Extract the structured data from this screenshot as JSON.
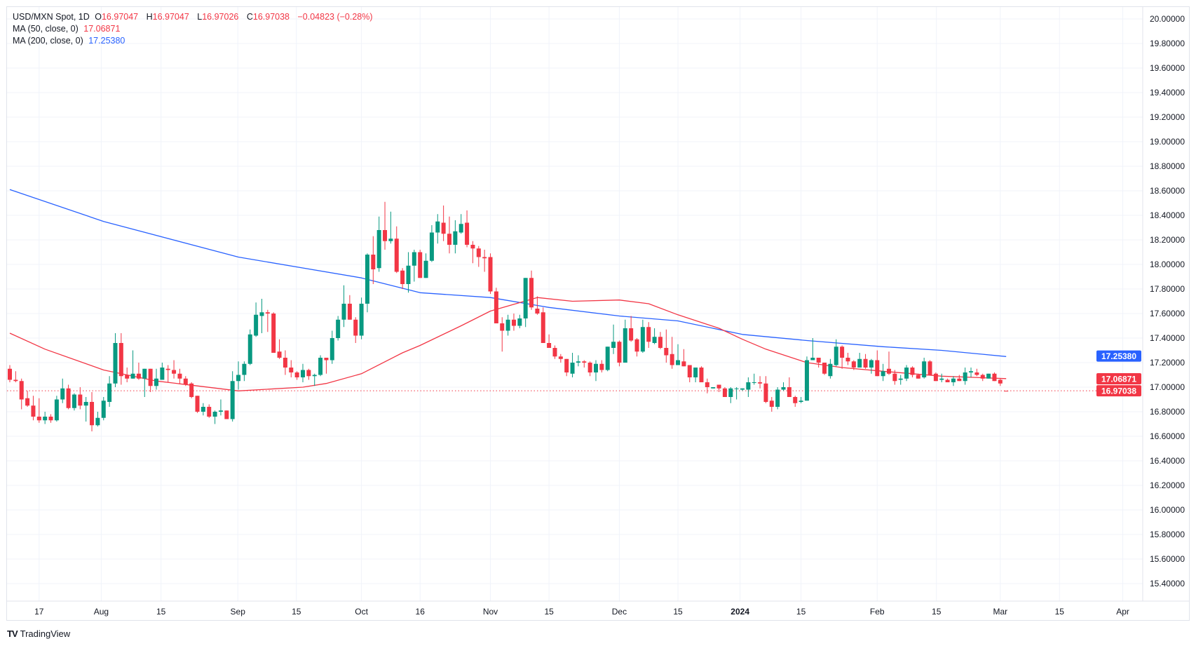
{
  "legend": {
    "symbol": "USD/MXN Spot, 1D",
    "o_label": "O",
    "o_value": "16.97047",
    "h_label": "H",
    "h_value": "16.97047",
    "l_label": "L",
    "l_value": "16.97026",
    "c_label": "C",
    "c_value": "16.97038",
    "change": "−0.04823 (−0.28%)",
    "ma50_label": "MA (50, close, 0)",
    "ma50_value": "17.06871",
    "ma200_label": "MA (200, close, 0)",
    "ma200_value": "17.25380"
  },
  "price_tags": {
    "ma200": "17.25380",
    "ma50": "17.06871",
    "close": "16.97038"
  },
  "brand": {
    "logo": "TV",
    "name": "TradingView"
  },
  "colors": {
    "up": "#089981",
    "down": "#f23645",
    "ma50": "#f23645",
    "ma200": "#2962ff",
    "grid": "#f0f3fa"
  },
  "chart_data": {
    "type": "candlestick",
    "title": "USD/MXN Spot, 1D",
    "ylim": [
      15.3,
      20.08
    ],
    "y_ticks": [
      "15.40000",
      "15.60000",
      "15.80000",
      "16.00000",
      "16.20000",
      "16.40000",
      "16.60000",
      "16.80000",
      "17.00000",
      "17.20000",
      "17.40000",
      "17.60000",
      "17.80000",
      "18.00000",
      "18.20000",
      "18.40000",
      "18.60000",
      "18.80000",
      "19.00000",
      "19.20000",
      "19.40000",
      "19.60000",
      "19.80000",
      "20.00000"
    ],
    "x_ticks": [
      {
        "label": "17",
        "bar": 6
      },
      {
        "label": "Aug",
        "bar": 16.6
      },
      {
        "label": "15",
        "bar": 26.8
      },
      {
        "label": "Sep",
        "bar": 39.9
      },
      {
        "label": "15",
        "bar": 49.9
      },
      {
        "label": "Oct",
        "bar": 61
      },
      {
        "label": "16",
        "bar": 71
      },
      {
        "label": "Nov",
        "bar": 83
      },
      {
        "label": "15",
        "bar": 93
      },
      {
        "label": "Dec",
        "bar": 105
      },
      {
        "label": "15",
        "bar": 115
      },
      {
        "label": "2024",
        "bar": 125.6,
        "bold": true
      },
      {
        "label": "15",
        "bar": 136
      },
      {
        "label": "Feb",
        "bar": 149
      },
      {
        "label": "15",
        "bar": 159.1
      },
      {
        "label": "Mar",
        "bar": 170
      },
      {
        "label": "15",
        "bar": 180.1
      },
      {
        "label": "Apr",
        "bar": 190.9
      }
    ],
    "last_close": 16.97038,
    "ma200": {
      "value": 17.2538,
      "points": [
        [
          1,
          18.61
        ],
        [
          17,
          18.35
        ],
        [
          40,
          18.06
        ],
        [
          61,
          17.89
        ],
        [
          71,
          17.77
        ],
        [
          83,
          17.73
        ],
        [
          93,
          17.65
        ],
        [
          105,
          17.58
        ],
        [
          115,
          17.54
        ],
        [
          126,
          17.43
        ],
        [
          137,
          17.38
        ],
        [
          150,
          17.33
        ],
        [
          160,
          17.3
        ],
        [
          171,
          17.25
        ]
      ]
    },
    "ma50": {
      "value": 17.06871,
      "points": [
        [
          1,
          17.44
        ],
        [
          7,
          17.31
        ],
        [
          17,
          17.14
        ],
        [
          26,
          17.05
        ],
        [
          33,
          17.01
        ],
        [
          40,
          16.97
        ],
        [
          51,
          17.0
        ],
        [
          55,
          17.03
        ],
        [
          61,
          17.11
        ],
        [
          68,
          17.28
        ],
        [
          71,
          17.34
        ],
        [
          78,
          17.5
        ],
        [
          83,
          17.62
        ],
        [
          91,
          17.73
        ],
        [
          97,
          17.7
        ],
        [
          105,
          17.71
        ],
        [
          110,
          17.68
        ],
        [
          115,
          17.59
        ],
        [
          122,
          17.48
        ],
        [
          126,
          17.39
        ],
        [
          130,
          17.31
        ],
        [
          137,
          17.2
        ],
        [
          143,
          17.16
        ],
        [
          150,
          17.13
        ],
        [
          160,
          17.09
        ],
        [
          171,
          17.07
        ]
      ]
    },
    "ohlc": [
      [
        17.15,
        17.18,
        17.04,
        17.06
      ],
      [
        17.06,
        17.13,
        17.04,
        17.05
      ],
      [
        17.05,
        17.07,
        16.82,
        16.9
      ],
      [
        16.91,
        16.97,
        16.84,
        16.85
      ],
      [
        16.85,
        16.93,
        16.73,
        16.76
      ],
      [
        16.76,
        16.91,
        16.71,
        16.73
      ],
      [
        16.73,
        16.8,
        16.7,
        16.76
      ],
      [
        16.76,
        16.78,
        16.71,
        16.73
      ],
      [
        16.73,
        16.93,
        16.72,
        16.9
      ],
      [
        16.9,
        17.07,
        16.87,
        16.99
      ],
      [
        16.99,
        17.02,
        16.82,
        16.83
      ],
      [
        16.83,
        16.95,
        16.81,
        16.94
      ],
      [
        16.94,
        17.0,
        16.82,
        16.85
      ],
      [
        16.85,
        16.92,
        16.72,
        16.88
      ],
      [
        16.88,
        16.96,
        16.64,
        16.69
      ],
      [
        16.69,
        16.8,
        16.68,
        16.75
      ],
      [
        16.75,
        16.92,
        16.73,
        16.89
      ],
      [
        16.88,
        17.09,
        16.84,
        17.03
      ],
      [
        17.03,
        17.44,
        17.0,
        17.36
      ],
      [
        17.36,
        17.44,
        17.02,
        17.09
      ],
      [
        17.1,
        17.16,
        17.04,
        17.07
      ],
      [
        17.07,
        17.3,
        17.07,
        17.11
      ],
      [
        17.11,
        17.2,
        17.06,
        17.07
      ],
      [
        17.07,
        17.15,
        16.92,
        17.15
      ],
      [
        17.15,
        17.15,
        16.96,
        17.01
      ],
      [
        17.01,
        17.15,
        16.98,
        17.07
      ],
      [
        17.06,
        17.2,
        17.06,
        17.16
      ],
      [
        17.15,
        17.18,
        17.04,
        17.14
      ],
      [
        17.14,
        17.22,
        17.07,
        17.11
      ],
      [
        17.11,
        17.15,
        17.03,
        17.07
      ],
      [
        17.07,
        17.09,
        17.01,
        17.02
      ],
      [
        17.03,
        17.04,
        16.91,
        16.92
      ],
      [
        16.93,
        16.93,
        16.79,
        16.8
      ],
      [
        16.8,
        16.87,
        16.77,
        16.84
      ],
      [
        16.84,
        16.86,
        16.75,
        16.76
      ],
      [
        16.76,
        16.81,
        16.7,
        16.8
      ],
      [
        16.8,
        16.9,
        16.77,
        16.81
      ],
      [
        16.81,
        16.81,
        16.74,
        16.74
      ],
      [
        16.74,
        17.13,
        16.72,
        17.05
      ],
      [
        17.05,
        17.21,
        16.98,
        17.1
      ],
      [
        17.1,
        17.21,
        17.05,
        17.19
      ],
      [
        17.19,
        17.47,
        17.18,
        17.43
      ],
      [
        17.42,
        17.69,
        17.41,
        17.59
      ],
      [
        17.58,
        17.72,
        17.44,
        17.61
      ],
      [
        17.61,
        17.63,
        17.45,
        17.6
      ],
      [
        17.6,
        17.61,
        17.28,
        17.28
      ],
      [
        17.29,
        17.39,
        17.23,
        17.24
      ],
      [
        17.24,
        17.3,
        17.1,
        17.16
      ],
      [
        17.16,
        17.22,
        17.08,
        17.12
      ],
      [
        17.12,
        17.13,
        17.06,
        17.08
      ],
      [
        17.08,
        17.19,
        17.04,
        17.14
      ],
      [
        17.14,
        17.15,
        17.06,
        17.09
      ],
      [
        17.09,
        17.11,
        17.01,
        17.1
      ],
      [
        17.1,
        17.26,
        17.09,
        17.24
      ],
      [
        17.24,
        17.24,
        17.11,
        17.22
      ],
      [
        17.22,
        17.46,
        17.19,
        17.4
      ],
      [
        17.4,
        17.58,
        17.38,
        17.55
      ],
      [
        17.55,
        17.83,
        17.49,
        17.68
      ],
      [
        17.68,
        17.75,
        17.55,
        17.55
      ],
      [
        17.55,
        17.57,
        17.36,
        17.42
      ],
      [
        17.42,
        17.73,
        17.39,
        17.68
      ],
      [
        17.68,
        18.09,
        17.61,
        18.08
      ],
      [
        18.08,
        18.23,
        17.84,
        17.96
      ],
      [
        17.97,
        18.39,
        17.94,
        18.28
      ],
      [
        18.28,
        18.51,
        18.12,
        18.19
      ],
      [
        18.19,
        18.43,
        18.17,
        18.21
      ],
      [
        18.21,
        18.31,
        17.93,
        17.94
      ],
      [
        17.95,
        17.97,
        17.8,
        17.84
      ],
      [
        17.84,
        18.1,
        17.77,
        17.99
      ],
      [
        17.99,
        18.12,
        17.86,
        18.1
      ],
      [
        18.1,
        18.12,
        17.89,
        17.89
      ],
      [
        17.89,
        18.09,
        17.89,
        18.03
      ],
      [
        18.03,
        18.32,
        18.02,
        18.26
      ],
      [
        18.26,
        18.41,
        18.17,
        18.35
      ],
      [
        18.34,
        18.48,
        18.19,
        18.25
      ],
      [
        18.25,
        18.39,
        18.09,
        18.16
      ],
      [
        18.16,
        18.36,
        18.09,
        18.27
      ],
      [
        18.26,
        18.41,
        18.25,
        18.33
      ],
      [
        18.34,
        18.44,
        18.14,
        18.16
      ],
      [
        18.16,
        18.19,
        18.01,
        18.13
      ],
      [
        18.13,
        18.15,
        17.98,
        18.06
      ],
      [
        18.06,
        18.12,
        17.94,
        18.05
      ],
      [
        18.06,
        18.09,
        17.76,
        17.78
      ],
      [
        17.78,
        17.81,
        17.52,
        17.52
      ],
      [
        17.52,
        17.57,
        17.29,
        17.46
      ],
      [
        17.46,
        17.59,
        17.42,
        17.55
      ],
      [
        17.55,
        17.6,
        17.46,
        17.5
      ],
      [
        17.5,
        17.59,
        17.48,
        17.56
      ],
      [
        17.56,
        17.89,
        17.49,
        17.89
      ],
      [
        17.89,
        17.95,
        17.63,
        17.65
      ],
      [
        17.64,
        17.74,
        17.59,
        17.6
      ],
      [
        17.61,
        17.65,
        17.36,
        17.36
      ],
      [
        17.36,
        17.43,
        17.32,
        17.32
      ],
      [
        17.32,
        17.34,
        17.23,
        17.25
      ],
      [
        17.25,
        17.27,
        17.2,
        17.23
      ],
      [
        17.23,
        17.23,
        17.09,
        17.12
      ],
      [
        17.11,
        17.28,
        17.08,
        17.2
      ],
      [
        17.2,
        17.26,
        17.17,
        17.21
      ],
      [
        17.21,
        17.22,
        17.16,
        17.2
      ],
      [
        17.2,
        17.21,
        17.09,
        17.12
      ],
      [
        17.12,
        17.22,
        17.05,
        17.19
      ],
      [
        17.19,
        17.22,
        17.12,
        17.14
      ],
      [
        17.14,
        17.33,
        17.13,
        17.33
      ],
      [
        17.32,
        17.51,
        17.27,
        17.37
      ],
      [
        17.37,
        17.38,
        17.17,
        17.2
      ],
      [
        17.2,
        17.55,
        17.2,
        17.48
      ],
      [
        17.48,
        17.58,
        17.37,
        17.38
      ],
      [
        17.39,
        17.4,
        17.25,
        17.29
      ],
      [
        17.29,
        17.55,
        17.28,
        17.49
      ],
      [
        17.49,
        17.53,
        17.32,
        17.37
      ],
      [
        17.36,
        17.48,
        17.35,
        17.41
      ],
      [
        17.41,
        17.45,
        17.31,
        17.32
      ],
      [
        17.32,
        17.47,
        17.2,
        17.26
      ],
      [
        17.27,
        17.41,
        17.15,
        17.18
      ],
      [
        17.18,
        17.35,
        17.18,
        17.22
      ],
      [
        17.21,
        17.31,
        17.17,
        17.17
      ],
      [
        17.18,
        17.18,
        17.04,
        17.08
      ],
      [
        17.08,
        17.16,
        17.04,
        17.16
      ],
      [
        17.16,
        17.17,
        17.04,
        17.04
      ],
      [
        17.04,
        17.07,
        16.95,
        17.0
      ],
      [
        16.99,
        17.0,
        16.99,
        17.0
      ],
      [
        17.02,
        17.02,
        16.96,
        16.99
      ],
      [
        16.99,
        17.0,
        16.92,
        16.92
      ],
      [
        16.92,
        17.0,
        16.87,
        16.99
      ],
      [
        16.99,
        17.0,
        16.9,
        16.99
      ],
      [
        16.98,
        16.99,
        16.97,
        16.99
      ],
      [
        16.98,
        17.08,
        16.92,
        17.04
      ],
      [
        17.04,
        17.11,
        17.02,
        17.04
      ],
      [
        17.04,
        17.09,
        16.99,
        17.03
      ],
      [
        17.03,
        17.09,
        16.87,
        16.88
      ],
      [
        16.89,
        16.92,
        16.8,
        16.84
      ],
      [
        16.84,
        17.0,
        16.82,
        16.98
      ],
      [
        16.98,
        17.04,
        16.97,
        17.0
      ],
      [
        17.0,
        17.08,
        16.92,
        16.92
      ],
      [
        16.92,
        16.93,
        16.84,
        16.87
      ],
      [
        16.88,
        16.92,
        16.87,
        16.89
      ],
      [
        16.89,
        17.25,
        16.89,
        17.22
      ],
      [
        17.22,
        17.4,
        17.22,
        17.24
      ],
      [
        17.24,
        17.24,
        17.16,
        17.2
      ],
      [
        17.2,
        17.2,
        17.1,
        17.11
      ],
      [
        17.09,
        17.23,
        17.07,
        17.19
      ],
      [
        17.18,
        17.39,
        17.17,
        17.33
      ],
      [
        17.33,
        17.34,
        17.15,
        17.24
      ],
      [
        17.24,
        17.28,
        17.18,
        17.21
      ],
      [
        17.21,
        17.22,
        17.14,
        17.16
      ],
      [
        17.16,
        17.28,
        17.16,
        17.23
      ],
      [
        17.23,
        17.27,
        17.15,
        17.16
      ],
      [
        17.16,
        17.23,
        17.11,
        17.22
      ],
      [
        17.22,
        17.3,
        17.09,
        17.09
      ],
      [
        17.09,
        17.19,
        17.05,
        17.13
      ],
      [
        17.15,
        17.29,
        17.1,
        17.11
      ],
      [
        17.11,
        17.14,
        17.02,
        17.05
      ],
      [
        17.06,
        17.1,
        17.02,
        17.07
      ],
      [
        17.07,
        17.18,
        17.05,
        17.16
      ],
      [
        17.16,
        17.17,
        17.08,
        17.1
      ],
      [
        17.1,
        17.11,
        17.07,
        17.07
      ],
      [
        17.08,
        17.24,
        17.07,
        17.21
      ],
      [
        17.21,
        17.22,
        17.1,
        17.1
      ],
      [
        17.11,
        17.12,
        17.05,
        17.05
      ],
      [
        17.06,
        17.11,
        17.04,
        17.07
      ],
      [
        17.06,
        17.07,
        17.04,
        17.04
      ],
      [
        17.04,
        17.09,
        17.01,
        17.07
      ],
      [
        17.07,
        17.1,
        17.05,
        17.05
      ],
      [
        17.05,
        17.16,
        17.02,
        17.12
      ],
      [
        17.12,
        17.16,
        17.08,
        17.13
      ],
      [
        17.12,
        17.15,
        17.09,
        17.1
      ],
      [
        17.1,
        17.11,
        17.05,
        17.07
      ],
      [
        17.07,
        17.11,
        17.07,
        17.11
      ],
      [
        17.11,
        17.12,
        17.05,
        17.05
      ],
      [
        17.06,
        17.07,
        17.01,
        17.03
      ],
      [
        16.97047,
        16.97047,
        16.97026,
        16.97038
      ]
    ]
  }
}
